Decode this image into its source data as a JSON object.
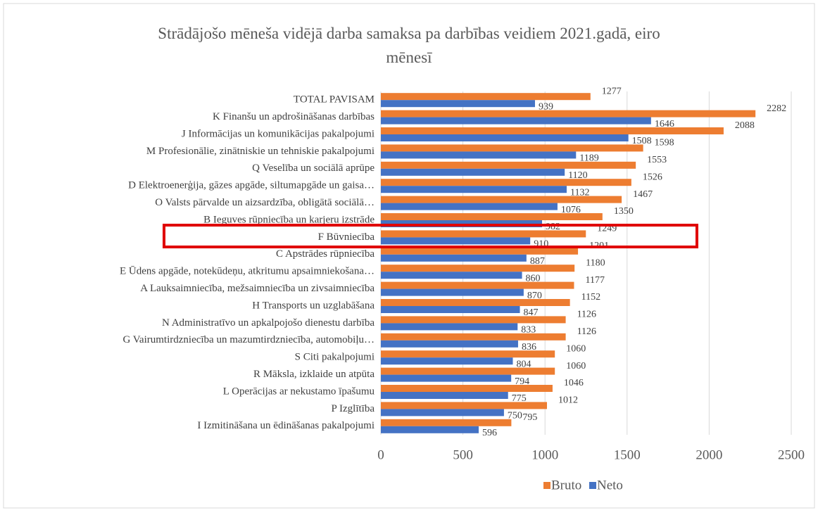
{
  "chart_data": {
    "type": "hbar",
    "title": "Strādājošo mēneša vidējā darba samaksa pa darbības veidiem 2021.gadā, eiro mēnesī",
    "categories": [
      "TOTAL PAVISAM",
      "K Finanšu un apdrošināšanas darbības",
      "J Informācijas un komunikācijas pakalpojumi",
      "M Profesionālie, zinātniskie un tehniskie pakalpojumi",
      "Q Veselība un sociālā aprūpe",
      "D Elektroenerģija, gāzes apgāde, siltumapgāde un gaisa…",
      "O Valsts pārvalde un aizsardzība, obligātā sociālā…",
      "B Ieguves rūpniecība un karjeru izstrāde",
      "F Būvniecība",
      "C Apstrādes rūpniecība",
      "E Ūdens apgāde, notekūdeņu, atkritumu apsaimniekošana…",
      "A Lauksaimniecība, mežsaimniecība un zivsaimniecība",
      "H Transports un uzglabāšana",
      "N Administratīvo un apkalpojošo dienestu darbība",
      "G Vairumtirdzniecība un mazumtirdzniecība, automobiļu…",
      "S Citi pakalpojumi",
      "R Māksla, izklaide un atpūta",
      "L Operācijas ar nekustamo īpašumu",
      "P Izglītība",
      "I Izmitināšana un ēdināšanas pakalpojumi"
    ],
    "series": [
      {
        "name": "Bruto",
        "color": "#ED7D31",
        "values": [
          1277,
          2282,
          2088,
          1598,
          1553,
          1526,
          1467,
          1350,
          1249,
          1201,
          1180,
          1177,
          1152,
          1126,
          1126,
          1060,
          1060,
          1046,
          1012,
          795
        ]
      },
      {
        "name": "Neto",
        "color": "#4472C4",
        "values": [
          939,
          1646,
          1508,
          1189,
          1120,
          1132,
          1076,
          982,
          910,
          887,
          860,
          870,
          847,
          833,
          836,
          804,
          794,
          775,
          750,
          596
        ]
      }
    ],
    "xlim": [
      0,
      2500
    ],
    "xticks": [
      0,
      500,
      1000,
      1500,
      2000,
      2500
    ],
    "grid": true,
    "legend": "bottom"
  }
}
